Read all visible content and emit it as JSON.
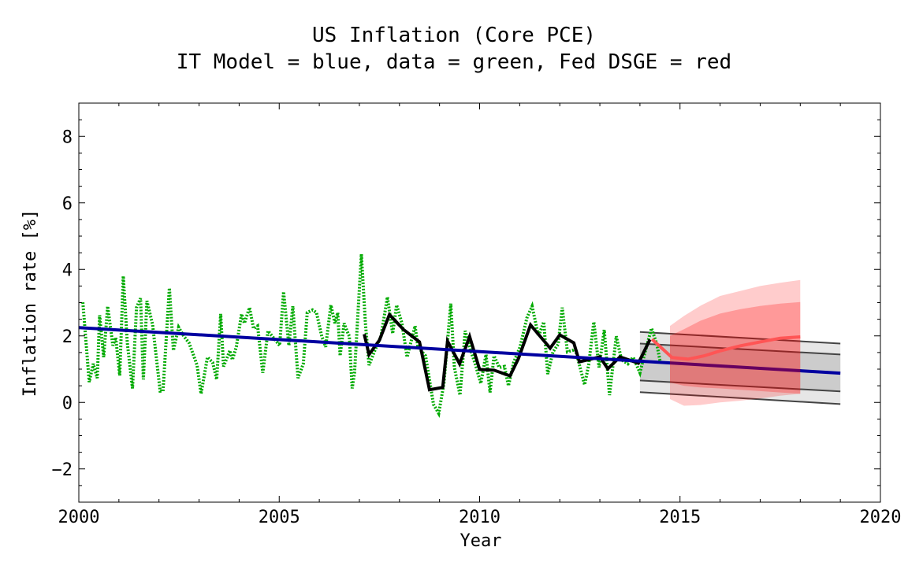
{
  "chart_data": {
    "type": "line",
    "title": "US Inflation (Core PCE)",
    "subtitle": "IT Model = blue, data = green, Fed DSGE = red",
    "xlabel": "Year",
    "ylabel": "Inflation rate [%]",
    "xlim": [
      2000,
      2020
    ],
    "ylim": [
      -3,
      9
    ],
    "xticks": [
      2000,
      2005,
      2010,
      2015,
      2020
    ],
    "yticks": [
      -2,
      0,
      2,
      4,
      6,
      8
    ],
    "grid": false,
    "colors": {
      "data": "#00aa00",
      "annual": "#000000",
      "it_model": "#0000a0",
      "dsge": "#ff5555",
      "dsge_band": "#ff0000",
      "it_band_outer": "#e6e6e6",
      "it_band_inner": "#cccccc",
      "it_band_lines": "#444444"
    },
    "series": [
      {
        "key": "data",
        "style": "dotted",
        "x": [
          2000.1,
          2000.26,
          2000.36,
          2000.46,
          2000.52,
          2000.62,
          2000.72,
          2000.85,
          2000.92,
          2001.02,
          2001.11,
          2001.21,
          2001.34,
          2001.44,
          2001.54,
          2001.61,
          2001.7,
          2001.84,
          2002.03,
          2002.1,
          2002.26,
          2002.36,
          2002.49,
          2002.62,
          2002.75,
          2002.95,
          2003.05,
          2003.21,
          2003.34,
          2003.44,
          2003.54,
          2003.61,
          2003.77,
          2003.83,
          2003.93,
          2004.06,
          2004.13,
          2004.26,
          2004.36,
          2004.46,
          2004.59,
          2004.72,
          2004.88,
          2005.01,
          2005.11,
          2005.24,
          2005.34,
          2005.47,
          2005.6,
          2005.7,
          2005.83,
          2005.93,
          2006.06,
          2006.16,
          2006.29,
          2006.39,
          2006.46,
          2006.52,
          2006.62,
          2006.69,
          2006.75,
          2006.82,
          2006.88,
          2007.05,
          2007.15,
          2007.24,
          2007.37,
          2007.54,
          2007.7,
          2007.83,
          2007.93,
          2008.06,
          2008.19,
          2008.39,
          2008.46,
          2008.65,
          2008.85,
          2008.98,
          2009.11,
          2009.28,
          2009.37,
          2009.51,
          2009.64,
          2009.77,
          2009.9,
          2010.03,
          2010.16,
          2010.26,
          2010.36,
          2010.49,
          2010.62,
          2010.72,
          2010.85,
          2011.01,
          2011.18,
          2011.31,
          2011.47,
          2011.6,
          2011.7,
          2011.83,
          2011.96,
          2012.06,
          2012.19,
          2012.39,
          2012.62,
          2012.72,
          2012.85,
          2012.98,
          2013.11,
          2013.24,
          2013.41,
          2013.54,
          2013.7,
          2013.83,
          2014.0,
          2014.13,
          2014.29,
          2014.42,
          2014.51
        ],
        "y": [
          3.01,
          0.61,
          1.16,
          0.73,
          2.62,
          1.36,
          2.89,
          1.71,
          1.95,
          0.81,
          3.8,
          1.79,
          0.42,
          2.85,
          3.13,
          0.69,
          3.05,
          2.34,
          0.34,
          0.34,
          3.44,
          1.56,
          2.26,
          1.99,
          1.79,
          1.12,
          0.26,
          1.36,
          1.2,
          0.69,
          2.66,
          1.08,
          1.56,
          1.28,
          1.67,
          2.66,
          2.38,
          2.85,
          2.22,
          2.3,
          0.89,
          2.15,
          1.91,
          1.71,
          3.33,
          1.71,
          2.89,
          0.73,
          1.16,
          2.7,
          2.78,
          2.7,
          1.99,
          1.67,
          2.93,
          2.38,
          2.7,
          1.4,
          2.38,
          2.15,
          1.99,
          0.42,
          0.89,
          4.46,
          2.38,
          1.12,
          1.52,
          1.99,
          3.17,
          2.07,
          2.93,
          2.38,
          1.36,
          2.3,
          1.67,
          1.4,
          -0.06,
          -0.33,
          0.57,
          2.97,
          1.05,
          0.22,
          2.15,
          1.59,
          1.12,
          0.57,
          1.44,
          0.3,
          1.4,
          1.05,
          1.08,
          0.5,
          1.2,
          1.67,
          2.54,
          2.89,
          1.99,
          2.42,
          0.85,
          1.52,
          1.75,
          2.85,
          1.52,
          1.59,
          0.53,
          1.12,
          2.42,
          1.05,
          2.18,
          0.22,
          1.99,
          1.28,
          1.16,
          1.36,
          0.89,
          1.52,
          2.23,
          1.75,
          1.2
        ]
      },
      {
        "key": "annual",
        "style": "solid",
        "x": [
          2007.12,
          2007.24,
          2007.5,
          2007.75,
          2008.1,
          2008.5,
          2008.75,
          2009.08,
          2009.2,
          2009.5,
          2009.75,
          2010.0,
          2010.36,
          2010.76,
          2010.97,
          2011.27,
          2011.76,
          2012.0,
          2012.35,
          2012.49,
          2013.0,
          2013.2,
          2013.5,
          2013.96,
          2014.25
        ],
        "y": [
          2.05,
          1.44,
          1.87,
          2.64,
          2.19,
          1.82,
          0.38,
          0.45,
          1.84,
          1.16,
          1.98,
          0.99,
          0.97,
          0.8,
          1.32,
          2.33,
          1.63,
          2.03,
          1.79,
          1.22,
          1.37,
          1.01,
          1.37,
          1.18,
          1.89
        ]
      },
      {
        "key": "it_model",
        "style": "solid",
        "x": [
          2000,
          2019
        ],
        "y": [
          2.25,
          0.88
        ]
      },
      {
        "key": "dsge",
        "style": "solid",
        "x": [
          2014.3,
          2014.8,
          2015.2,
          2015.6,
          2016.0,
          2016.5,
          2017.0,
          2017.5,
          2018.0
        ],
        "y": [
          1.9,
          1.35,
          1.3,
          1.4,
          1.55,
          1.7,
          1.82,
          1.93,
          1.97
        ]
      }
    ],
    "it_bands": {
      "x": [
        2014,
        2019
      ],
      "outer_upper": [
        2.12,
        1.77
      ],
      "inner_upper": [
        1.77,
        1.44
      ],
      "inner_lower": [
        0.66,
        0.33
      ],
      "outer_lower": [
        0.31,
        -0.05
      ]
    },
    "dsge_bands": {
      "x": [
        2014.75,
        2015.1,
        2015.5,
        2016.0,
        2016.5,
        2017.0,
        2017.5,
        2018.0
      ],
      "outer_upper": [
        2.3,
        2.6,
        2.9,
        3.2,
        3.35,
        3.5,
        3.6,
        3.68
      ],
      "inner_upper": [
        2.0,
        2.2,
        2.45,
        2.67,
        2.8,
        2.9,
        2.97,
        3.02
      ],
      "inner_lower": [
        0.6,
        0.5,
        0.45,
        0.42,
        0.38,
        0.34,
        0.3,
        0.26
      ],
      "outer_lower": [
        0.1,
        -0.1,
        -0.08,
        0.0,
        0.05,
        0.12,
        0.2,
        0.26
      ]
    }
  }
}
